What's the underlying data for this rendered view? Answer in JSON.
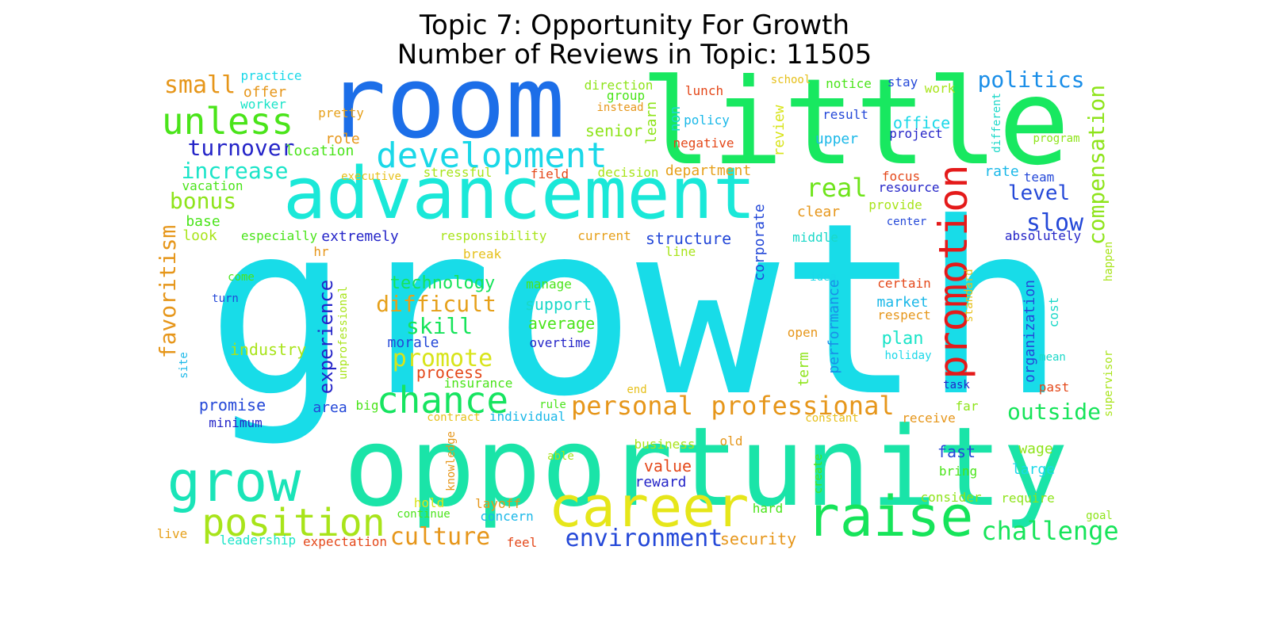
{
  "title": {
    "line1": "Topic 7: Opportunity For Growth",
    "line2": "Number of Reviews in Topic: 11505"
  },
  "words": [
    {
      "text": "growth",
      "color": "#18dce8"
    },
    {
      "text": "opportunity",
      "color": "#1ae4a8"
    },
    {
      "text": "room",
      "color": "#1c6ee8"
    },
    {
      "text": "little",
      "color": "#18e860"
    },
    {
      "text": "advancement",
      "color": "#1ae8d8"
    },
    {
      "text": "career",
      "color": "#e6e61a"
    },
    {
      "text": "raise",
      "color": "#16e45a"
    },
    {
      "text": "grow",
      "color": "#1ae4b8"
    },
    {
      "text": "position",
      "color": "#a8e41a"
    },
    {
      "text": "development",
      "color": "#1ad8e8"
    },
    {
      "text": "promotion",
      "color": "#e41a1a"
    },
    {
      "text": "chance",
      "color": "#16e460"
    },
    {
      "text": "unless",
      "color": "#4ae41a"
    },
    {
      "text": "small",
      "color": "#e6961a"
    },
    {
      "text": "turnover",
      "color": "#2424c8"
    },
    {
      "text": "increase",
      "color": "#1ae4c8"
    },
    {
      "text": "bonus",
      "color": "#8ee41a"
    },
    {
      "text": "favoritism",
      "color": "#e6961a"
    },
    {
      "text": "politics",
      "color": "#1a8ee8"
    },
    {
      "text": "compensation",
      "color": "#8ee41a"
    },
    {
      "text": "real",
      "color": "#6ee41a"
    },
    {
      "text": "level",
      "color": "#2448d8"
    },
    {
      "text": "slow",
      "color": "#2448d8"
    },
    {
      "text": "personal",
      "color": "#e6961a"
    },
    {
      "text": "professional",
      "color": "#e6961a"
    },
    {
      "text": "outside",
      "color": "#16e45a"
    },
    {
      "text": "challenge",
      "color": "#16e45a"
    },
    {
      "text": "environment",
      "color": "#2448d8"
    },
    {
      "text": "culture",
      "color": "#e6961a"
    },
    {
      "text": "difficult",
      "color": "#e6a01a"
    },
    {
      "text": "skill",
      "color": "#16e45a"
    },
    {
      "text": "promote",
      "color": "#d8e41a"
    },
    {
      "text": "experience",
      "color": "#2424c8"
    },
    {
      "text": "technology",
      "color": "#16e45a"
    },
    {
      "text": "security",
      "color": "#e6961a"
    },
    {
      "text": "industry",
      "color": "#a8e41a"
    },
    {
      "text": "process",
      "color": "#e4481a"
    },
    {
      "text": "promise",
      "color": "#2448d8"
    },
    {
      "text": "minimum",
      "color": "#2424c8"
    },
    {
      "text": "office",
      "color": "#1ad8e8"
    },
    {
      "text": "upper",
      "color": "#1ab8e8"
    },
    {
      "text": "senior",
      "color": "#8ee41a"
    },
    {
      "text": "department",
      "color": "#e6a01a"
    },
    {
      "text": "structure",
      "color": "#2448d8"
    },
    {
      "text": "extremely",
      "color": "#2424c8"
    },
    {
      "text": "support",
      "color": "#1ad8c8"
    },
    {
      "text": "average",
      "color": "#4ae41a"
    },
    {
      "text": "morale",
      "color": "#2448d8"
    },
    {
      "text": "overtime",
      "color": "#2424c8"
    },
    {
      "text": "market",
      "color": "#1ab8e8"
    },
    {
      "text": "plan",
      "color": "#1ae4c8"
    },
    {
      "text": "certain",
      "color": "#e4481a"
    },
    {
      "text": "respect",
      "color": "#e6961a"
    },
    {
      "text": "performance",
      "color": "#1a8ee8"
    },
    {
      "text": "corporate",
      "color": "#2448d8"
    },
    {
      "text": "review",
      "color": "#d8e41a"
    },
    {
      "text": "term",
      "color": "#8ee41a"
    },
    {
      "text": "organization",
      "color": "#2448d8"
    },
    {
      "text": "clear",
      "color": "#e6961a"
    },
    {
      "text": "location",
      "color": "#4ae41a"
    },
    {
      "text": "role",
      "color": "#e6961a"
    },
    {
      "text": "base",
      "color": "#4ae41a"
    },
    {
      "text": "look",
      "color": "#a8e41a"
    },
    {
      "text": "offer",
      "color": "#e6961a"
    },
    {
      "text": "practice",
      "color": "#1ad8e8"
    },
    {
      "text": "worker",
      "color": "#1ae4c8"
    },
    {
      "text": "pretty",
      "color": "#e6a01a"
    },
    {
      "text": "vacation",
      "color": "#4ae41a"
    },
    {
      "text": "executive",
      "color": "#e6c01a"
    },
    {
      "text": "stressful",
      "color": "#a8e41a"
    },
    {
      "text": "field",
      "color": "#e4481a"
    },
    {
      "text": "decision",
      "color": "#a8e41a"
    },
    {
      "text": "especially",
      "color": "#4ae41a"
    },
    {
      "text": "responsibility",
      "color": "#a8e41a"
    },
    {
      "text": "current",
      "color": "#e6a01a"
    },
    {
      "text": "break",
      "color": "#e6c01a"
    },
    {
      "text": "line",
      "color": "#a8e41a"
    },
    {
      "text": "manage",
      "color": "#4ae41a"
    },
    {
      "text": "hr",
      "color": "#e6961a"
    },
    {
      "text": "come",
      "color": "#4ae41a"
    },
    {
      "text": "turn",
      "color": "#2448d8"
    },
    {
      "text": "unprofessional",
      "color": "#a8e41a"
    },
    {
      "text": "site",
      "color": "#1ab8e8"
    },
    {
      "text": "direction",
      "color": "#8ee41a"
    },
    {
      "text": "group",
      "color": "#4ae41a"
    },
    {
      "text": "instead",
      "color": "#e6961a"
    },
    {
      "text": "learn",
      "color": "#8ee41a"
    },
    {
      "text": "non",
      "color": "#1ad8c8"
    },
    {
      "text": "lunch",
      "color": "#e4481a"
    },
    {
      "text": "policy",
      "color": "#1ab8e8"
    },
    {
      "text": "negative",
      "color": "#e4481a"
    },
    {
      "text": "school",
      "color": "#e6c01a"
    },
    {
      "text": "notice",
      "color": "#4ae41a"
    },
    {
      "text": "stay",
      "color": "#2448d8"
    },
    {
      "text": "work",
      "color": "#a8e41a"
    },
    {
      "text": "result",
      "color": "#2448d8"
    },
    {
      "text": "project",
      "color": "#2424c8"
    },
    {
      "text": "different",
      "color": "#1ad8c8"
    },
    {
      "text": "program",
      "color": "#8ee41a"
    },
    {
      "text": "focus",
      "color": "#e4481a"
    },
    {
      "text": "resource",
      "color": "#2424c8"
    },
    {
      "text": "rate",
      "color": "#1ab8e8"
    },
    {
      "text": "team",
      "color": "#2448d8"
    },
    {
      "text": "provide",
      "color": "#a8e41a"
    },
    {
      "text": "center",
      "color": "#2448d8"
    },
    {
      "text": "middle",
      "color": "#1ad8c8"
    },
    {
      "text": "absolutely",
      "color": "#2424c8"
    },
    {
      "text": "happen",
      "color": "#a8e41a"
    },
    {
      "text": "idea",
      "color": "#1ad8e8"
    },
    {
      "text": "standard",
      "color": "#e6c01a"
    },
    {
      "text": "cost",
      "color": "#1ad8c8"
    },
    {
      "text": "open",
      "color": "#e6961a"
    },
    {
      "text": "holiday",
      "color": "#1ad8e8"
    },
    {
      "text": "mean",
      "color": "#1ad8c8"
    },
    {
      "text": "supervisor",
      "color": "#a8e41a"
    },
    {
      "text": "task",
      "color": "#2424c8"
    },
    {
      "text": "past",
      "color": "#e4481a"
    },
    {
      "text": "end",
      "color": "#e6c01a"
    },
    {
      "text": "insurance",
      "color": "#4ae41a"
    },
    {
      "text": "rule",
      "color": "#4ae41a"
    },
    {
      "text": "big",
      "color": "#4ae41a"
    },
    {
      "text": "area",
      "color": "#2448d8"
    },
    {
      "text": "contract",
      "color": "#e6c01a"
    },
    {
      "text": "individual",
      "color": "#1ab8e8"
    },
    {
      "text": "constant",
      "color": "#e6c01a"
    },
    {
      "text": "far",
      "color": "#8ee41a"
    },
    {
      "text": "receive",
      "color": "#e6961a"
    },
    {
      "text": "business",
      "color": "#a8e41a"
    },
    {
      "text": "old",
      "color": "#e6961a"
    },
    {
      "text": "value",
      "color": "#e4481a"
    },
    {
      "text": "reward",
      "color": "#2424c8"
    },
    {
      "text": "knowledge",
      "color": "#e6961a"
    },
    {
      "text": "able",
      "color": "#a8e41a"
    },
    {
      "text": "hold",
      "color": "#d8e41a"
    },
    {
      "text": "layoff",
      "color": "#e6961a"
    },
    {
      "text": "continue",
      "color": "#4ae41a"
    },
    {
      "text": "concern",
      "color": "#1ab8e8"
    },
    {
      "text": "create",
      "color": "#4ae41a"
    },
    {
      "text": "hard",
      "color": "#4ae41a"
    },
    {
      "text": "fast",
      "color": "#2448d8"
    },
    {
      "text": "bring",
      "color": "#4ae41a"
    },
    {
      "text": "wage",
      "color": "#8ee41a"
    },
    {
      "text": "large",
      "color": "#1ad8e8"
    },
    {
      "text": "consider",
      "color": "#8ee41a"
    },
    {
      "text": "require",
      "color": "#8ee41a"
    },
    {
      "text": "goal",
      "color": "#8ee41a"
    },
    {
      "text": "live",
      "color": "#e6a01a"
    },
    {
      "text": "leadership",
      "color": "#1ae4c8"
    },
    {
      "text": "expectation",
      "color": "#e4481a"
    },
    {
      "text": "feel",
      "color": "#e4481a"
    }
  ]
}
